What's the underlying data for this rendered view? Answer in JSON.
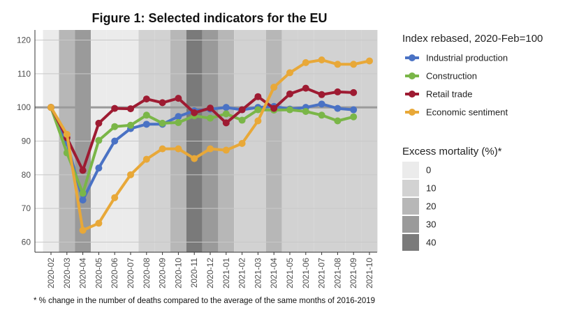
{
  "chart_data": {
    "type": "line",
    "title": "Figure 1: Selected indicators for the EU",
    "xlabel": "",
    "ylabel": "",
    "ylim": [
      57,
      123
    ],
    "yticks": [
      60,
      70,
      80,
      90,
      100,
      110,
      120
    ],
    "reference_line": 100,
    "categories": [
      "2020-02",
      "2020-03",
      "2020-04",
      "2020-05",
      "2020-06",
      "2020-07",
      "2020-08",
      "2020-09",
      "2020-10",
      "2020-11",
      "2020-12",
      "2021-01",
      "2021-02",
      "2021-03",
      "2021-04",
      "2021-05",
      "2021-06",
      "2021-07",
      "2021-08",
      "2021-09",
      "2021-10"
    ],
    "legend_title": "Index rebased, 2020-Feb=100",
    "series": [
      {
        "name": "Industrial production",
        "color": "#4a72c4",
        "values": [
          100,
          89.5,
          72.5,
          82,
          90,
          93.7,
          95,
          95,
          97.3,
          99,
          99.5,
          100,
          99.3,
          100,
          100.3,
          99.5,
          100,
          101,
          99.7,
          99.3,
          null
        ]
      },
      {
        "name": "Construction",
        "color": "#7ab648",
        "values": [
          100,
          86.5,
          74.5,
          90.2,
          94.3,
          94.7,
          97.7,
          95.3,
          95.5,
          97.5,
          96.8,
          98.1,
          96.2,
          99.3,
          99.2,
          99.3,
          98.8,
          97.7,
          96,
          97.2,
          null
        ]
      },
      {
        "name": "Retail trade",
        "color": "#9e1b32",
        "values": [
          100,
          91,
          81.3,
          95.3,
          99.7,
          99.6,
          102.5,
          101.4,
          102.7,
          98.4,
          99.8,
          95.4,
          99.3,
          103.2,
          99.7,
          104,
          105.7,
          103.8,
          104.6,
          104.4,
          null
        ]
      },
      {
        "name": "Economic sentiment",
        "color": "#e8a838",
        "values": [
          100,
          92,
          63.5,
          65.6,
          73.2,
          80,
          84.6,
          87.7,
          87.7,
          84.8,
          87.7,
          87.3,
          89.3,
          96,
          106,
          110.3,
          113.3,
          114.1,
          112.8,
          112.8,
          113.8
        ]
      }
    ],
    "excess_mortality": {
      "legend_title": "Excess mortality (%)*",
      "levels": [
        {
          "label": "0",
          "color": "#ebebeb"
        },
        {
          "label": "10",
          "color": "#d2d2d2"
        },
        {
          "label": "20",
          "color": "#b7b7b7"
        },
        {
          "label": "30",
          "color": "#9a9a9a"
        },
        {
          "label": "40",
          "color": "#7a7a7a"
        }
      ],
      "monthly": [
        0,
        2,
        3,
        0,
        0,
        0,
        1,
        1,
        2,
        4,
        3,
        2,
        1,
        1,
        2,
        1,
        1,
        1,
        1,
        1,
        1
      ]
    },
    "footnote": "* % change in the number of deaths compared to the average of the same months of 2016-2019"
  }
}
